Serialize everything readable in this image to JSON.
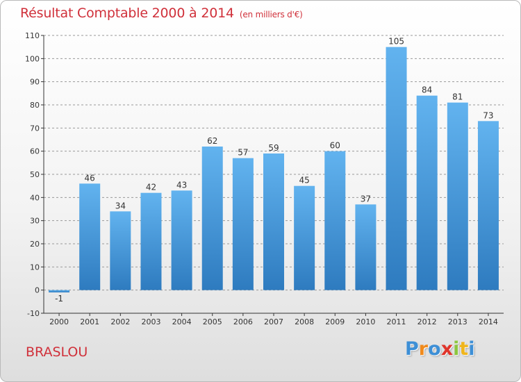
{
  "title": "Résultat Comptable 2000 à 2014",
  "unit": "(en milliers d'€)",
  "commune": "BRASLOU",
  "logo": {
    "letters": [
      {
        "char": "P",
        "color": "#3d8fd6"
      },
      {
        "char": "r",
        "color": "#f08a1c"
      },
      {
        "char": "o",
        "color": "#3d8fd6"
      },
      {
        "char": "x",
        "color": "#e0352b"
      },
      {
        "char": "i",
        "color": "#8cc63f"
      },
      {
        "char": "t",
        "color": "#f0b51c"
      },
      {
        "char": "i",
        "color": "#3d8fd6"
      }
    ]
  },
  "colors": {
    "bar_light": "#62b3ef",
    "bar_dark": "#2e7bbf",
    "axis": "#333333",
    "grid": "#999999",
    "title": "#d0303a"
  },
  "chart_data": {
    "type": "bar",
    "categories": [
      "2000",
      "2001",
      "2002",
      "2003",
      "2004",
      "2005",
      "2006",
      "2007",
      "2008",
      "2009",
      "2010",
      "2011",
      "2012",
      "2013",
      "2014"
    ],
    "values": [
      -1,
      46,
      34,
      42,
      43,
      62,
      57,
      59,
      45,
      60,
      37,
      105,
      84,
      81,
      73
    ],
    "data_labels": [
      "-1",
      "46",
      "34",
      "42",
      "43",
      "62",
      "57",
      "59",
      "45",
      "60",
      "37",
      "105",
      "84",
      "81",
      "73"
    ],
    "ylim": [
      -10,
      110
    ],
    "yticks": [
      -10,
      0,
      10,
      20,
      30,
      40,
      50,
      60,
      70,
      80,
      90,
      100,
      110
    ],
    "grid": true,
    "grid_style": "dashed horizontal"
  }
}
